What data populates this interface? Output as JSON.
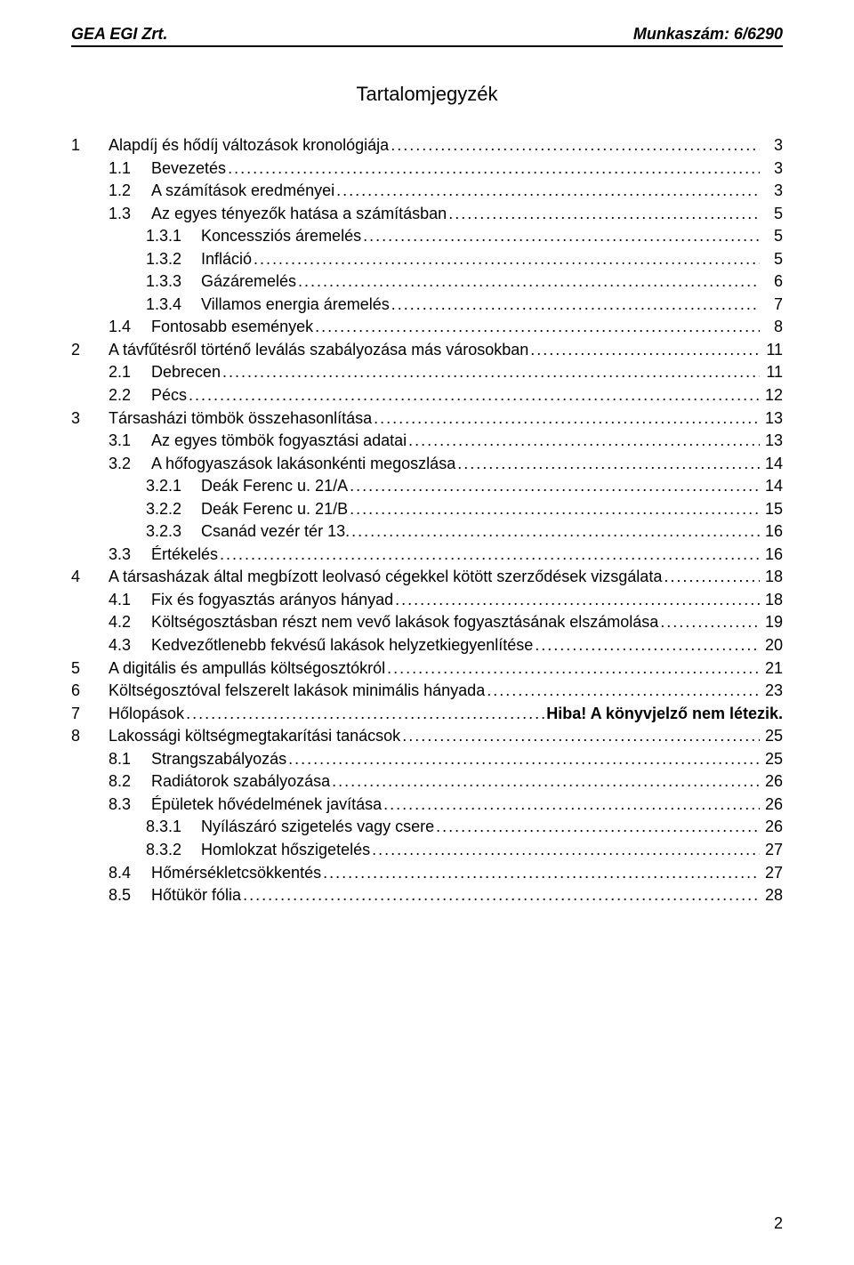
{
  "header": {
    "left": "GEA EGI Zrt.",
    "right": "Munkaszám: 6/6290"
  },
  "toc_title": "Tartalomjegyzék",
  "page_number": "2",
  "entries": [
    {
      "indent": 0,
      "num": "1",
      "text": "Alapdíj és hődíj változások kronológiája",
      "page": "3"
    },
    {
      "indent": 1,
      "num": "1.1",
      "text": "Bevezetés",
      "page": "3"
    },
    {
      "indent": 1,
      "num": "1.2",
      "text": "A számítások eredményei",
      "page": "3"
    },
    {
      "indent": 1,
      "num": "1.3",
      "text": "Az egyes tényezők hatása a számításban",
      "page": "5"
    },
    {
      "indent": 2,
      "num": "1.3.1",
      "text": "Koncessziós áremelés",
      "page": "5"
    },
    {
      "indent": 2,
      "num": "1.3.2",
      "text": "Infláció",
      "page": "5"
    },
    {
      "indent": 2,
      "num": "1.3.3",
      "text": "Gázáremelés",
      "page": "6"
    },
    {
      "indent": 2,
      "num": "1.3.4",
      "text": "Villamos energia áremelés",
      "page": "7"
    },
    {
      "indent": 1,
      "num": "1.4",
      "text": "Fontosabb események",
      "page": "8"
    },
    {
      "indent": 0,
      "num": "2",
      "text": "A távfűtésről történő leválás szabályozása más városokban",
      "page": "11"
    },
    {
      "indent": 1,
      "num": "2.1",
      "text": "Debrecen",
      "page": "11"
    },
    {
      "indent": 1,
      "num": "2.2",
      "text": "Pécs",
      "page": "12"
    },
    {
      "indent": 0,
      "num": "3",
      "text": "Társasházi tömbök összehasonlítása",
      "page": "13"
    },
    {
      "indent": 1,
      "num": "3.1",
      "text": "Az egyes tömbök fogyasztási adatai",
      "page": "13"
    },
    {
      "indent": 1,
      "num": "3.2",
      "text": "A hőfogyaszások lakásonkénti megoszlása",
      "page": "14"
    },
    {
      "indent": 2,
      "num": "3.2.1",
      "text": "Deák Ferenc u. 21/A",
      "page": "14"
    },
    {
      "indent": 2,
      "num": "3.2.2",
      "text": "Deák Ferenc u. 21/B",
      "page": "15"
    },
    {
      "indent": 2,
      "num": "3.2.3",
      "text": "Csanád vezér tér 13. ",
      "page": "16"
    },
    {
      "indent": 1,
      "num": "3.3",
      "text": "Értékelés",
      "page": "16"
    },
    {
      "indent": 0,
      "num": "4",
      "text": "A társasházak által megbízott leolvasó cégekkel kötött szerződések vizsgálata",
      "page": "18"
    },
    {
      "indent": 1,
      "num": "4.1",
      "text": "Fix és fogyasztás arányos hányad",
      "page": "18"
    },
    {
      "indent": 1,
      "num": "4.2",
      "text": "Költségosztásban részt nem vevő lakások fogyasztásának elszámolása",
      "page": "19"
    },
    {
      "indent": 1,
      "num": "4.3",
      "text": "Kedvezőtlenebb fekvésű lakások helyzetkiegyenlítése",
      "page": "20"
    },
    {
      "indent": 0,
      "num": "5",
      "text": "A digitális és ampullás költségosztókról",
      "page": "21"
    },
    {
      "indent": 0,
      "num": "6",
      "text": "Költségosztóval felszerelt lakások minimális hányada",
      "page": "23"
    },
    {
      "indent": 0,
      "num": "7",
      "text": "Hőlopások",
      "tail": "Hiba! A könyvjelző nem létezik."
    },
    {
      "indent": 0,
      "num": "8",
      "text": "Lakossági költségmegtakarítási tanácsok",
      "page": "25"
    },
    {
      "indent": 1,
      "num": "8.1",
      "text": "Strangszabályozás",
      "page": "25"
    },
    {
      "indent": 1,
      "num": "8.2",
      "text": "Radiátorok szabályozása",
      "page": "26"
    },
    {
      "indent": 1,
      "num": "8.3",
      "text": "Épületek hővédelmének javítása",
      "page": "26"
    },
    {
      "indent": 2,
      "num": "8.3.1",
      "text": "Nyílászáró szigetelés vagy csere",
      "page": "26"
    },
    {
      "indent": 2,
      "num": "8.3.2",
      "text": "Homlokzat hőszigetelés",
      "page": "27"
    },
    {
      "indent": 1,
      "num": "8.4",
      "text": "Hőmérsékletcsökkentés",
      "page": "27"
    },
    {
      "indent": 1,
      "num": "8.5",
      "text": "Hőtükör fólia",
      "page": "28"
    }
  ]
}
